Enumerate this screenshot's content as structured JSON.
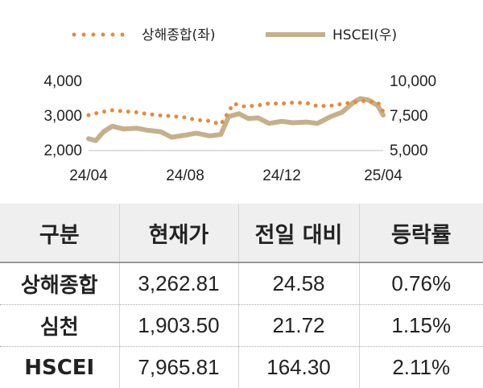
{
  "chart_data": {
    "type": "line",
    "series": [
      {
        "name": "상해종합(좌)",
        "axis": "left",
        "color": "#e8893a",
        "style": "dotted",
        "x": [
          "2024-04-01",
          "2024-04-15",
          "2024-05-01",
          "2024-05-15",
          "2024-06-01",
          "2024-06-15",
          "2024-07-01",
          "2024-07-15",
          "2024-08-01",
          "2024-08-15",
          "2024-09-01",
          "2024-09-15",
          "2024-10-01",
          "2024-10-15",
          "2024-11-01",
          "2024-11-15",
          "2024-12-01",
          "2024-12-15",
          "2025-01-01",
          "2025-01-15",
          "2025-02-01",
          "2025-02-15",
          "2025-03-01",
          "2025-03-15",
          "2025-04-01",
          "2025-04-08"
        ],
        "values": [
          3000,
          3080,
          3140,
          3110,
          3080,
          3030,
          2990,
          2970,
          2930,
          2860,
          2830,
          2730,
          3330,
          3250,
          3280,
          3340,
          3330,
          3360,
          3350,
          3260,
          3270,
          3320,
          3370,
          3410,
          3380,
          3100
        ]
      },
      {
        "name": "HSCEI(우)",
        "axis": "right",
        "color": "#c4b08a",
        "style": "solid",
        "x": [
          "2024-04-01",
          "2024-04-10",
          "2024-04-20",
          "2024-05-01",
          "2024-05-15",
          "2024-06-01",
          "2024-06-15",
          "2024-07-01",
          "2024-07-15",
          "2024-08-01",
          "2024-08-15",
          "2024-09-01",
          "2024-09-15",
          "2024-09-25",
          "2024-10-08",
          "2024-10-20",
          "2024-11-01",
          "2024-11-15",
          "2024-12-01",
          "2024-12-15",
          "2025-01-01",
          "2025-01-15",
          "2025-02-01",
          "2025-02-15",
          "2025-03-01",
          "2025-03-10",
          "2025-03-20",
          "2025-04-01",
          "2025-04-08"
        ],
        "values": [
          5800,
          5650,
          6300,
          6700,
          6500,
          6550,
          6400,
          6300,
          5900,
          6050,
          6200,
          6000,
          6100,
          7400,
          7600,
          7250,
          7300,
          6900,
          7050,
          6950,
          7000,
          6900,
          7400,
          7700,
          8400,
          8700,
          8600,
          8200,
          7500
        ]
      }
    ],
    "y_left": {
      "ylim": [
        2000,
        4000
      ],
      "ticks": [
        "2,000",
        "3,000",
        "4,000"
      ]
    },
    "y_right": {
      "ylim": [
        5000,
        10000
      ],
      "ticks": [
        "5,000",
        "7,500",
        "10,000"
      ]
    },
    "x_ticks": [
      "24/04",
      "24/08",
      "24/12",
      "25/04"
    ],
    "legend_position": "top",
    "grid": false
  },
  "table": {
    "headers": [
      "구분",
      "현재가",
      "전일 대비",
      "등락률"
    ],
    "rows": [
      [
        "상해종합",
        "3,262.81",
        "24.58",
        "0.76%"
      ],
      [
        "심천",
        "1,903.50",
        "21.72",
        "1.15%"
      ],
      [
        "HSCEI",
        "7,965.81",
        "164.30",
        "2.11%"
      ]
    ]
  }
}
